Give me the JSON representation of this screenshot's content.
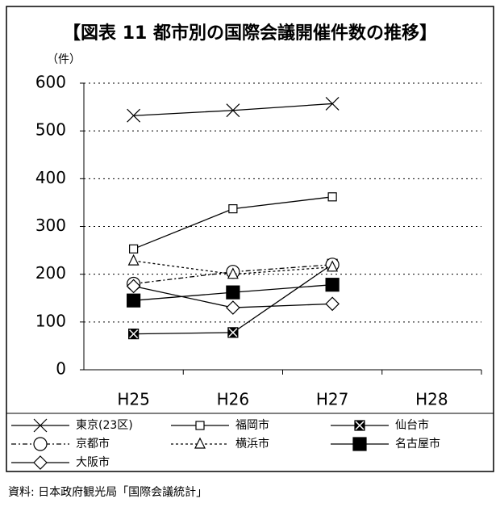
{
  "chart_data": {
    "type": "line",
    "title": "【図表 11 都市別の国際会議開催件数の推移】",
    "ylabel": "（件）",
    "source": "資料: 日本政府観光局「国際会議統計」",
    "categories": [
      "H25",
      "H26",
      "H27",
      "H28"
    ],
    "ylim": [
      0,
      600
    ],
    "yticks": [
      0,
      100,
      200,
      300,
      400,
      500,
      600
    ],
    "grid": true,
    "series": [
      {
        "name": "東京(23区)",
        "color": "#000000",
        "marker": "x",
        "dash": "solid",
        "values": [
          532,
          543,
          557,
          null
        ]
      },
      {
        "name": "福岡市",
        "color": "#000000",
        "marker": "square-open",
        "dash": "solid",
        "values": [
          253,
          337,
          362,
          null
        ]
      },
      {
        "name": "仙台市",
        "color": "#000000",
        "marker": "square-x",
        "dash": "solid",
        "values": [
          75,
          78,
          221,
          null
        ]
      },
      {
        "name": "京都市",
        "color": "#000000",
        "marker": "circle-open",
        "dash": "dashdot",
        "values": [
          180,
          205,
          220,
          null
        ]
      },
      {
        "name": "横浜市",
        "color": "#000000",
        "marker": "triangle-open",
        "dash": "dotted",
        "values": [
          228,
          200,
          215,
          null
        ]
      },
      {
        "name": "名古屋市",
        "color": "#000000",
        "marker": "square-filled",
        "dash": "solid",
        "values": [
          145,
          162,
          178,
          null
        ]
      },
      {
        "name": "大阪市",
        "color": "#000000",
        "marker": "diamond-open",
        "dash": "solid",
        "values": [
          175,
          130,
          138,
          null
        ]
      }
    ]
  }
}
